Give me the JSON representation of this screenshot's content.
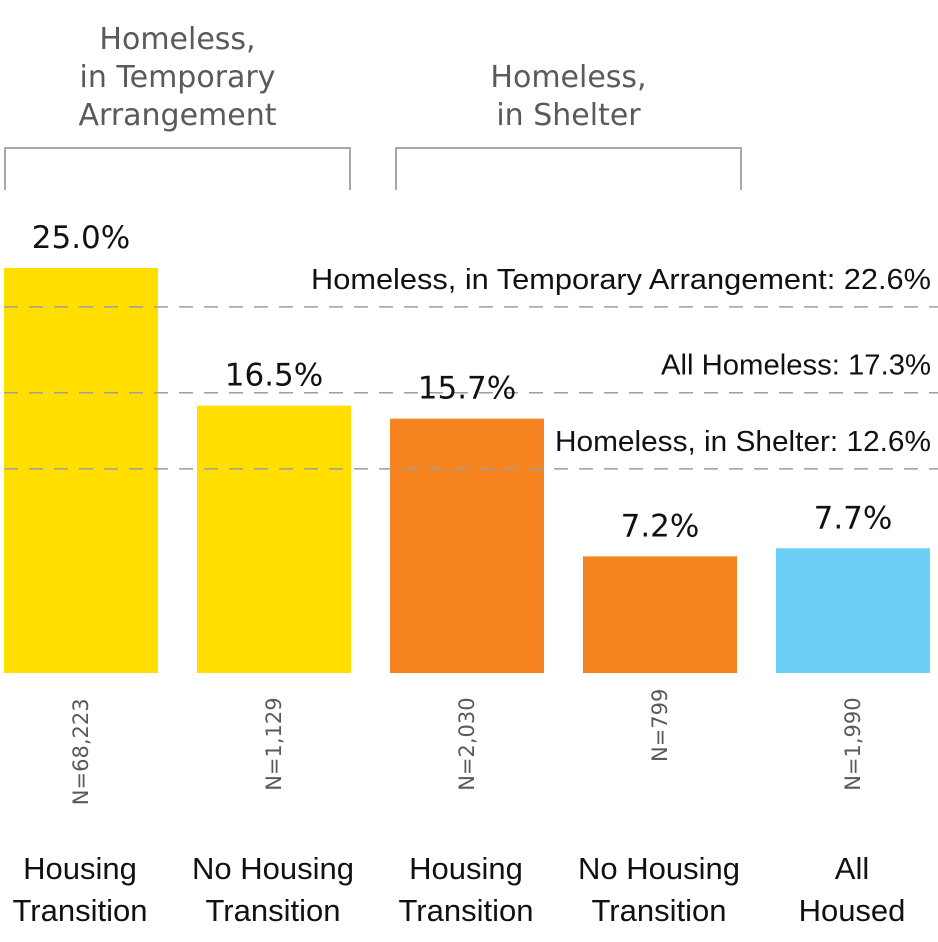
{
  "chart_data": {
    "type": "bar",
    "title": "",
    "xlabel": "",
    "ylabel": "",
    "ylim": [
      0,
      25
    ],
    "grid": false,
    "groups": [
      {
        "label_lines": [
          "Homeless,",
          "in Temporary",
          "Arrangement"
        ],
        "bars": [
          0,
          1
        ]
      },
      {
        "label_lines": [
          "Homeless,",
          "in Shelter"
        ],
        "bars": [
          2,
          3
        ]
      }
    ],
    "categories": [
      [
        "Housing",
        "Transition"
      ],
      [
        "No Housing",
        "Transition"
      ],
      [
        "Housing",
        "Transition"
      ],
      [
        "No Housing",
        "Transition"
      ],
      [
        "All",
        "Housed"
      ]
    ],
    "values": [
      25.0,
      16.5,
      15.7,
      7.2,
      7.7
    ],
    "value_labels": [
      "25.0%",
      "16.5%",
      "15.7%",
      "7.2%",
      "7.7%"
    ],
    "n_labels": [
      "N=68,223",
      "N=1,129",
      "N=2,030",
      "N=799",
      "N=1,990"
    ],
    "colors": [
      "#FFDE00",
      "#FFDE00",
      "#F58420",
      "#F58420",
      "#6DCFF6"
    ],
    "reference_lines": [
      {
        "label": "Homeless, in Temporary Arrangement: 22.6%",
        "value": 22.6
      },
      {
        "label": "All Homeless: 17.3%",
        "value": 17.3
      },
      {
        "label": "Homeless, in Shelter: 12.6%",
        "value": 12.6
      }
    ],
    "reference_line_color": "#9E9E9E",
    "bracket_color": "#A8A8A8"
  }
}
